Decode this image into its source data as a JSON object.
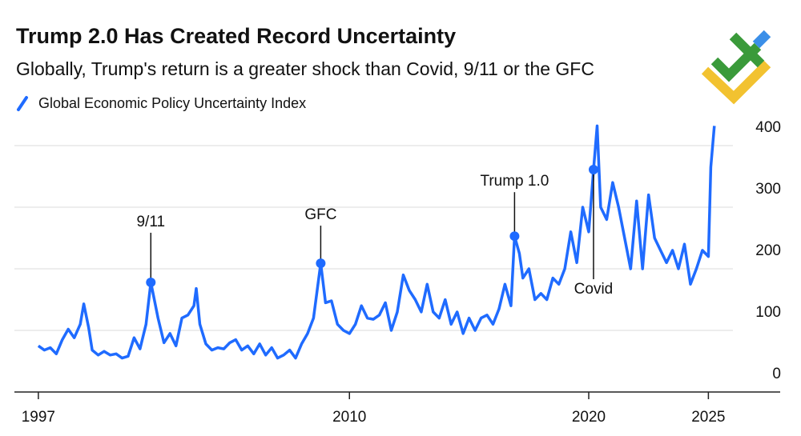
{
  "chart_data": {
    "type": "line",
    "title": "Trump 2.0 Has Created Record Uncertainty",
    "subtitle": "Globally, Trump's return is a greater shock than Covid, 9/11 or the GFC",
    "xlim": [
      1996,
      2028
    ],
    "xticks": [
      1997,
      2010,
      2020,
      2025
    ],
    "ylim": [
      0,
      450
    ],
    "yticks": [
      0,
      100,
      200,
      300,
      400
    ],
    "grid": true,
    "series": [
      {
        "name": "Global Economic Policy Uncertainty Index",
        "color": "#1f6bff",
        "x": [
          1997.0,
          1997.25,
          1997.5,
          1997.75,
          1998.0,
          1998.25,
          1998.5,
          1998.75,
          1998.9,
          1999.1,
          1999.25,
          1999.5,
          1999.75,
          2000.0,
          2000.25,
          2000.5,
          2000.75,
          2001.0,
          2001.25,
          2001.5,
          2001.7,
          2002.0,
          2002.25,
          2002.5,
          2002.75,
          2003.0,
          2003.25,
          2003.5,
          2003.6,
          2003.75,
          2004.0,
          2004.25,
          2004.5,
          2004.75,
          2005.0,
          2005.25,
          2005.5,
          2005.75,
          2006.0,
          2006.25,
          2006.5,
          2006.75,
          2007.0,
          2007.25,
          2007.5,
          2007.75,
          2008.0,
          2008.25,
          2008.5,
          2008.8,
          2009.0,
          2009.25,
          2009.5,
          2009.75,
          2010.0,
          2010.25,
          2010.5,
          2010.75,
          2011.0,
          2011.25,
          2011.5,
          2011.75,
          2012.0,
          2012.25,
          2012.5,
          2012.75,
          2013.0,
          2013.25,
          2013.5,
          2013.75,
          2014.0,
          2014.25,
          2014.5,
          2014.75,
          2015.0,
          2015.25,
          2015.5,
          2015.75,
          2016.0,
          2016.25,
          2016.5,
          2016.75,
          2016.9,
          2017.1,
          2017.25,
          2017.5,
          2017.75,
          2018.0,
          2018.25,
          2018.5,
          2018.75,
          2019.0,
          2019.25,
          2019.5,
          2019.75,
          2020.0,
          2020.2,
          2020.35,
          2020.5,
          2020.75,
          2021.0,
          2021.25,
          2021.5,
          2021.75,
          2022.0,
          2022.25,
          2022.5,
          2022.75,
          2023.0,
          2023.25,
          2023.5,
          2023.75,
          2024.0,
          2024.25,
          2024.5,
          2024.75,
          2025.0,
          2025.1,
          2025.25
        ],
        "values": [
          75,
          68,
          72,
          62,
          85,
          102,
          88,
          110,
          143,
          105,
          68,
          60,
          66,
          60,
          62,
          55,
          58,
          88,
          70,
          110,
          178,
          120,
          80,
          95,
          75,
          120,
          125,
          140,
          168,
          110,
          78,
          68,
          72,
          70,
          80,
          85,
          68,
          75,
          62,
          78,
          60,
          72,
          55,
          60,
          68,
          55,
          78,
          95,
          120,
          209,
          145,
          148,
          110,
          100,
          95,
          110,
          140,
          120,
          118,
          125,
          145,
          100,
          130,
          190,
          165,
          150,
          130,
          175,
          130,
          120,
          150,
          110,
          130,
          95,
          120,
          100,
          120,
          125,
          110,
          135,
          175,
          140,
          253,
          225,
          185,
          200,
          150,
          160,
          150,
          185,
          175,
          200,
          260,
          210,
          300,
          260,
          361,
          432,
          300,
          280,
          340,
          300,
          250,
          200,
          310,
          200,
          320,
          250,
          230,
          210,
          230,
          200,
          240,
          175,
          200,
          230,
          220,
          365,
          432
        ]
      }
    ],
    "annotations": [
      {
        "label": "9/11",
        "x": 2001.7,
        "y": 178
      },
      {
        "label": "GFC",
        "x": 2008.8,
        "y": 209
      },
      {
        "label": "Trump 1.0",
        "x": 2016.9,
        "y": 253
      },
      {
        "label": "Covid",
        "x": 2020.2,
        "y": 361
      }
    ]
  }
}
